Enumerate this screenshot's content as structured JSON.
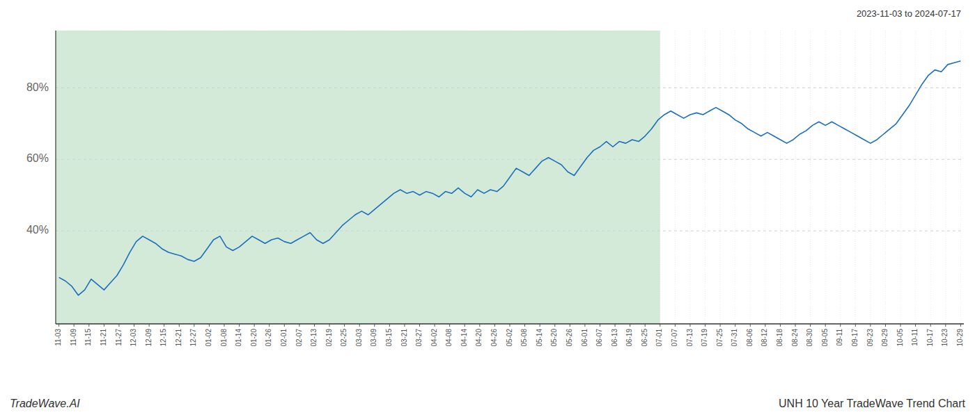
{
  "chart_data": {
    "type": "line",
    "title": "UNH 10 Year TradeWave Trend Chart",
    "subtitle": "2023-11-03 to 2024-07-17",
    "annotations": [
      "TradeWave.AI"
    ],
    "color": "#1a6ebd",
    "grid": true,
    "xlim": [
      -0.5,
      140.5
    ],
    "ylim": [
      14,
      96
    ],
    "yticks": [
      {
        "value": 40,
        "label": "40%"
      },
      {
        "value": 60,
        "label": "60%"
      },
      {
        "value": 80,
        "label": "80%"
      }
    ],
    "highlight": {
      "range": [
        -0.5,
        93.33333333333334
      ],
      "color": "#d4ead9"
    },
    "xticks": [
      {
        "value": 0,
        "label": "11-03"
      },
      {
        "value": 2.3333333333333335,
        "label": "11-09"
      },
      {
        "value": 4.666666666666667,
        "label": "11-15"
      },
      {
        "value": 7,
        "label": "11-21"
      },
      {
        "value": 9.333333333333334,
        "label": "11-27"
      },
      {
        "value": 11.666666666666668,
        "label": "12-03"
      },
      {
        "value": 14,
        "label": "12-09"
      },
      {
        "value": 16.333333333333336,
        "label": "12-15"
      },
      {
        "value": 18.666666666666668,
        "label": "12-21"
      },
      {
        "value": 21,
        "label": "12-27"
      },
      {
        "value": 23.333333333333336,
        "label": "01-02"
      },
      {
        "value": 25.666666666666668,
        "label": "01-08"
      },
      {
        "value": 28,
        "label": "01-14"
      },
      {
        "value": 30.333333333333336,
        "label": "01-20"
      },
      {
        "value": 32.66666666666667,
        "label": "01-26"
      },
      {
        "value": 35,
        "label": "02-01"
      },
      {
        "value": 37.333333333333336,
        "label": "02-07"
      },
      {
        "value": 39.66666666666667,
        "label": "02-13"
      },
      {
        "value": 42,
        "label": "02-19"
      },
      {
        "value": 44.333333333333336,
        "label": "02-25"
      },
      {
        "value": 46.66666666666667,
        "label": "03-03"
      },
      {
        "value": 49,
        "label": "03-09"
      },
      {
        "value": 51.333333333333336,
        "label": "03-15"
      },
      {
        "value": 53.66666666666667,
        "label": "03-21"
      },
      {
        "value": 56,
        "label": "03-27"
      },
      {
        "value": 58.333333333333336,
        "label": "04-02"
      },
      {
        "value": 60.66666666666667,
        "label": "04-08"
      },
      {
        "value": 63,
        "label": "04-14"
      },
      {
        "value": 65.33333333333334,
        "label": "04-20"
      },
      {
        "value": 67.66666666666667,
        "label": "04-26"
      },
      {
        "value": 70,
        "label": "05-02"
      },
      {
        "value": 72.33333333333334,
        "label": "05-08"
      },
      {
        "value": 74.66666666666667,
        "label": "05-14"
      },
      {
        "value": 77,
        "label": "05-20"
      },
      {
        "value": 79.33333333333334,
        "label": "05-26"
      },
      {
        "value": 81.66666666666667,
        "label": "06-01"
      },
      {
        "value": 84,
        "label": "06-07"
      },
      {
        "value": 86.33333333333334,
        "label": "06-13"
      },
      {
        "value": 88.66666666666667,
        "label": "06-19"
      },
      {
        "value": 91,
        "label": "06-25"
      },
      {
        "value": 93.33333333333334,
        "label": "07-01"
      },
      {
        "value": 95.66666666666667,
        "label": "07-07"
      },
      {
        "value": 98,
        "label": "07-13"
      },
      {
        "value": 100.33333333333334,
        "label": "07-19"
      },
      {
        "value": 102.66666666666667,
        "label": "07-25"
      },
      {
        "value": 105,
        "label": "07-31"
      },
      {
        "value": 107.33333333333334,
        "label": "08-06"
      },
      {
        "value": 109.66666666666667,
        "label": "08-12"
      },
      {
        "value": 112,
        "label": "08-18"
      },
      {
        "value": 114.33333333333334,
        "label": "08-24"
      },
      {
        "value": 116.66666666666667,
        "label": "08-30"
      },
      {
        "value": 119,
        "label": "09-05"
      },
      {
        "value": 121.33333333333334,
        "label": "09-11"
      },
      {
        "value": 123.66666666666667,
        "label": "09-17"
      },
      {
        "value": 126,
        "label": "09-23"
      },
      {
        "value": 128.33333333333334,
        "label": "09-29"
      },
      {
        "value": 130.66666666666669,
        "label": "10-05"
      },
      {
        "value": 133,
        "label": "10-11"
      },
      {
        "value": 135.33333333333334,
        "label": "10-17"
      },
      {
        "value": 137.66666666666669,
        "label": "10-23"
      },
      {
        "value": 140,
        "label": "10-29"
      }
    ],
    "x": [
      0,
      1,
      2,
      3,
      4,
      5,
      6,
      7,
      8,
      9,
      10,
      11,
      12,
      13,
      14,
      15,
      16,
      17,
      18,
      19,
      20,
      21,
      22,
      23,
      24,
      25,
      26,
      27,
      28,
      29,
      30,
      31,
      32,
      33,
      34,
      35,
      36,
      37,
      38,
      39,
      40,
      41,
      42,
      43,
      44,
      45,
      46,
      47,
      48,
      49,
      50,
      51,
      52,
      53,
      54,
      55,
      56,
      57,
      58,
      59,
      60,
      61,
      62,
      63,
      64,
      65,
      66,
      67,
      68,
      69,
      70,
      71,
      72,
      73,
      74,
      75,
      76,
      77,
      78,
      79,
      80,
      81,
      82,
      83,
      84,
      85,
      86,
      87,
      88,
      89,
      90,
      91,
      92,
      93,
      94,
      95,
      96,
      97,
      98,
      99,
      100,
      101,
      102,
      103,
      104,
      105,
      106,
      107,
      108,
      109,
      110,
      111,
      112,
      113,
      114,
      115,
      116,
      117,
      118,
      119,
      120,
      121,
      122,
      123,
      124,
      125,
      126,
      127,
      128,
      129,
      130,
      131,
      132,
      133,
      134,
      135,
      136,
      137,
      138,
      139,
      140
    ],
    "values": [
      27.0,
      26.0,
      24.5,
      22.0,
      23.5,
      26.5,
      25.0,
      23.5,
      25.5,
      27.5,
      30.5,
      34.0,
      37.0,
      38.5,
      37.5,
      36.5,
      35.0,
      34.0,
      33.5,
      33.0,
      32.0,
      31.5,
      32.5,
      35.0,
      37.5,
      38.5,
      35.5,
      34.5,
      35.5,
      37.0,
      38.5,
      37.5,
      36.5,
      37.5,
      38.0,
      37.0,
      36.5,
      37.5,
      38.5,
      39.5,
      37.5,
      36.5,
      37.5,
      39.5,
      41.5,
      43.0,
      44.5,
      45.5,
      44.5,
      46.0,
      47.5,
      49.0,
      50.5,
      51.5,
      50.5,
      51.0,
      50.0,
      51.0,
      50.5,
      49.5,
      51.0,
      50.5,
      52.0,
      50.5,
      49.5,
      51.5,
      50.5,
      51.5,
      51.0,
      52.5,
      55.0,
      57.5,
      56.5,
      55.5,
      57.5,
      59.5,
      60.5,
      59.5,
      58.5,
      56.5,
      55.5,
      58.0,
      60.5,
      62.5,
      63.5,
      65.0,
      63.5,
      65.0,
      64.5,
      65.5,
      65.0,
      66.5,
      68.5,
      71.0,
      72.5,
      73.5,
      72.5,
      71.5,
      72.5,
      73.0,
      72.5,
      73.5,
      74.5,
      73.5,
      72.5,
      71.0,
      70.0,
      68.5,
      67.5,
      66.5,
      67.5,
      66.5,
      65.5,
      64.5,
      65.5,
      67.0,
      68.0,
      69.5,
      70.5,
      69.5,
      70.5,
      69.5,
      68.5,
      67.5,
      66.5,
      65.5,
      64.5,
      65.5,
      67.0,
      68.5,
      70.0,
      72.5,
      75.0,
      78.0,
      81.0,
      83.5,
      85.0,
      84.5,
      86.5,
      87.0,
      87.5
    ]
  }
}
